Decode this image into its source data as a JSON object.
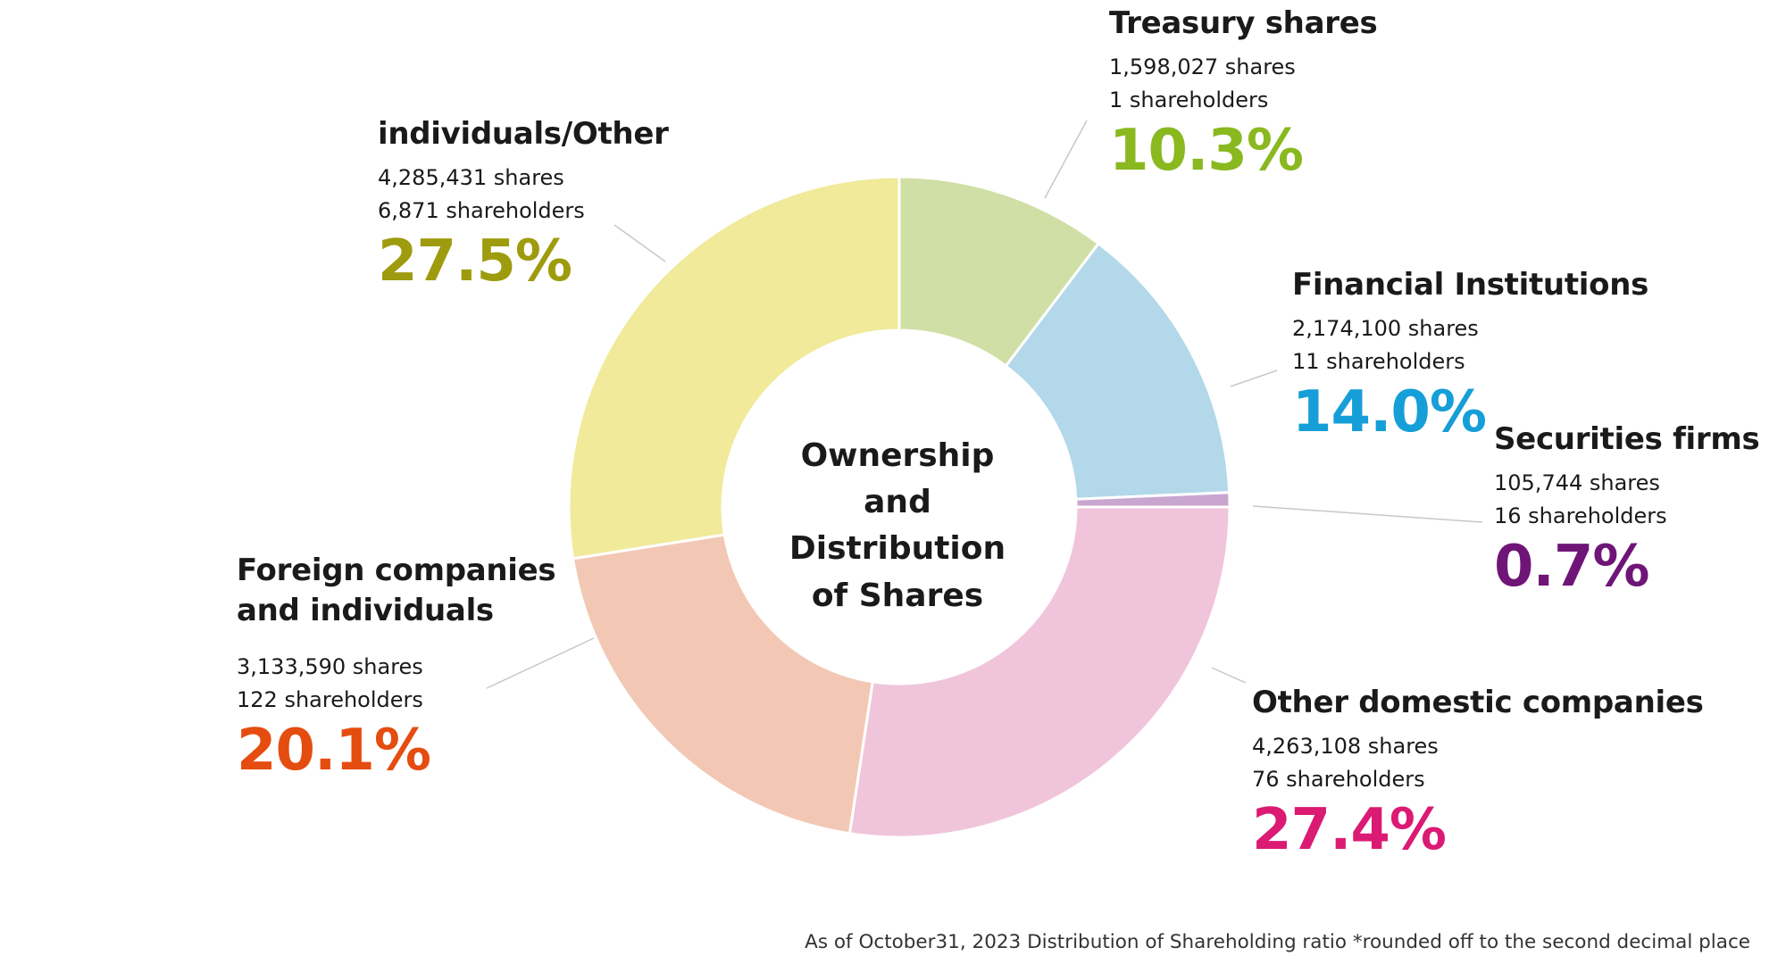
{
  "chart_data": {
    "type": "pie",
    "title": "Ownership and Distribution of Shares",
    "slices": [
      {
        "name": "Treasury shares",
        "shares": "1,598,027 shares",
        "holders": "1 shareholders",
        "pct_label": "10.3%",
        "value": 10.3,
        "fill": "#d0dfa5",
        "text_color": "#8ab81f"
      },
      {
        "name": "Financial Institutions",
        "shares": "2,174,100 shares",
        "holders": "11 shareholders",
        "pct_label": "14.0%",
        "value": 14.0,
        "fill": "#b2d8e9",
        "text_color": "#169ed8"
      },
      {
        "name": "Securities firms",
        "shares": "105,744 shares",
        "holders": "16 shareholders",
        "pct_label": "0.7%",
        "value": 0.7,
        "fill": "#c9a6d0",
        "text_color": "#6f1577"
      },
      {
        "name": "Other domestic companies",
        "shares": "4,263,108 shares",
        "holders": "76 shareholders",
        "pct_label": "27.4%",
        "value": 27.4,
        "fill": "#f0c5dc",
        "text_color": "#db1a74"
      },
      {
        "name": "Foreign companies and individuals",
        "shares": "3,133,590 shares",
        "holders": "122 shareholders",
        "pct_label": "20.1%",
        "value": 20.1,
        "fill": "#f2c8b5",
        "text_color": "#e54c10"
      },
      {
        "name": "individuals/Other",
        "shares": "4,285,431 shares",
        "holders": "6,871 shareholders",
        "pct_label": "27.5%",
        "value": 27.5,
        "fill": "#f0ea9a",
        "text_color": "#9e9b0e"
      }
    ]
  },
  "center_title": [
    "Ownership",
    "and Distribution",
    "of Shares"
  ],
  "footnote": "As of October31, 2023 Distribution of Shareholding ratio *rounded off to the second decimal place"
}
